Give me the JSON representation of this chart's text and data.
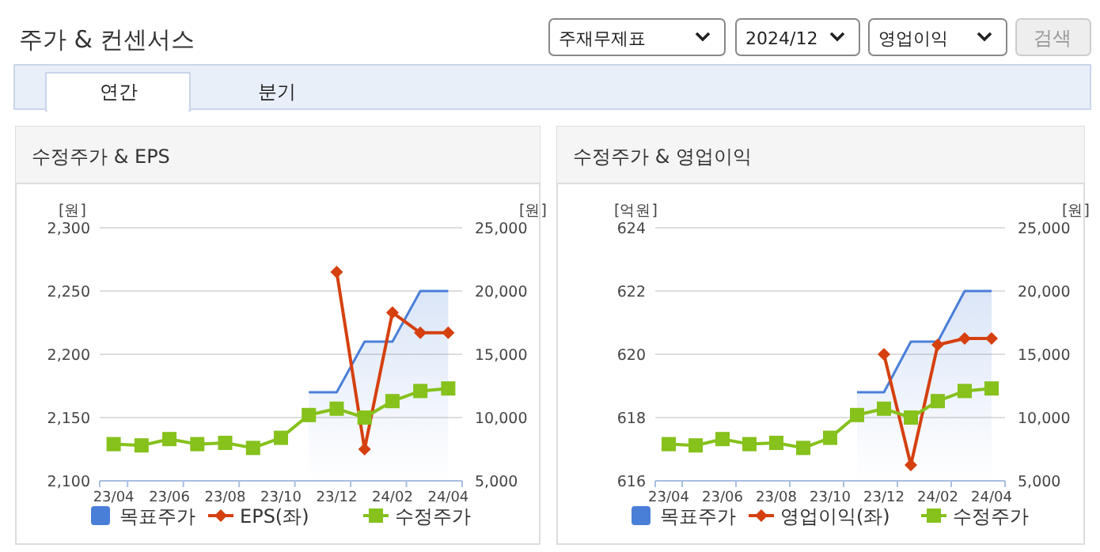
{
  "chart_data": [
    {
      "type": "line",
      "title": "수정주가 & EPS",
      "ylabel": "[원]",
      "y2label": "[원]",
      "annotations": [
        "주가 & 컨센서스",
        "주재무제표",
        "2024/12",
        "영업이익",
        "검색",
        "연간",
        "분기"
      ],
      "categories": [
        "23/04",
        null,
        "23/06",
        null,
        "23/08",
        null,
        "23/10",
        null,
        "23/12",
        null,
        "24/02",
        null,
        "24/04"
      ],
      "series": [
        {
          "name": "목표주가",
          "type": "area",
          "axis": "y2",
          "color": "#4a7fd8",
          "values": [
            null,
            null,
            null,
            null,
            null,
            null,
            null,
            12000,
            12000,
            16000,
            16000,
            20000,
            20000
          ]
        },
        {
          "name": "EPS(좌)",
          "type": "line",
          "marker": "diamond",
          "color": "#d5400f",
          "values": [
            null,
            null,
            null,
            null,
            null,
            null,
            null,
            null,
            2265,
            2125,
            2233,
            2217,
            2217
          ]
        },
        {
          "name": "수정주가",
          "type": "line",
          "axis": "y2",
          "marker": "square",
          "color": "#86c11c",
          "values": [
            7900,
            7800,
            8300,
            7900,
            8000,
            7600,
            8400,
            10200,
            10700,
            10000,
            11300,
            12100,
            12300
          ]
        }
      ],
      "ylim": [
        2100,
        2300
      ],
      "yticks": [
        {
          "value": 2100,
          "label": "2,100"
        },
        {
          "value": 2150,
          "label": "2,150"
        },
        {
          "value": 2200,
          "label": "2,200"
        },
        {
          "value": 2250,
          "label": "2,250"
        },
        {
          "value": 2300,
          "label": "2,300"
        }
      ],
      "y2lim": [
        5000,
        25000
      ],
      "y2ticks": [
        {
          "value": 5000,
          "label": "5,000"
        },
        {
          "value": 10000,
          "label": "10,000"
        },
        {
          "value": 15000,
          "label": "15,000"
        },
        {
          "value": 20000,
          "label": "20,000"
        },
        {
          "value": 25000,
          "label": "25,000"
        }
      ],
      "grid": "y",
      "legend": "bottom"
    },
    {
      "type": "line",
      "title": "수정주가 & 영업이익",
      "ylabel": "[억원]",
      "y2label": "[원]",
      "categories": [
        "23/04",
        null,
        "23/06",
        null,
        "23/08",
        null,
        "23/10",
        null,
        "23/12",
        null,
        "24/02",
        null,
        "24/04"
      ],
      "series": [
        {
          "name": "목표주가",
          "type": "area",
          "axis": "y2",
          "color": "#4a7fd8",
          "values": [
            null,
            null,
            null,
            null,
            null,
            null,
            null,
            12000,
            12000,
            16000,
            16000,
            20000,
            20000
          ]
        },
        {
          "name": "영업이익(좌)",
          "type": "line",
          "marker": "diamond",
          "color": "#d5400f",
          "values": [
            null,
            null,
            null,
            null,
            null,
            null,
            null,
            null,
            620.0,
            616.5,
            620.3,
            620.5,
            620.5
          ]
        },
        {
          "name": "수정주가",
          "type": "line",
          "axis": "y2",
          "marker": "square",
          "color": "#86c11c",
          "values": [
            7900,
            7800,
            8300,
            7900,
            8000,
            7600,
            8400,
            10200,
            10700,
            10000,
            11300,
            12100,
            12300
          ]
        }
      ],
      "ylim": [
        616,
        624
      ],
      "yticks": [
        616,
        618,
        620,
        622,
        624
      ],
      "y2lim": [
        5000,
        25000
      ],
      "y2ticks": [
        {
          "value": 5000,
          "label": "5,000"
        },
        {
          "value": 10000,
          "label": "10,000"
        },
        {
          "value": 15000,
          "label": "15,000"
        },
        {
          "value": 20000,
          "label": "20,000"
        },
        {
          "value": 25000,
          "label": "25,000"
        }
      ],
      "grid": "y",
      "legend": "bottom"
    }
  ]
}
